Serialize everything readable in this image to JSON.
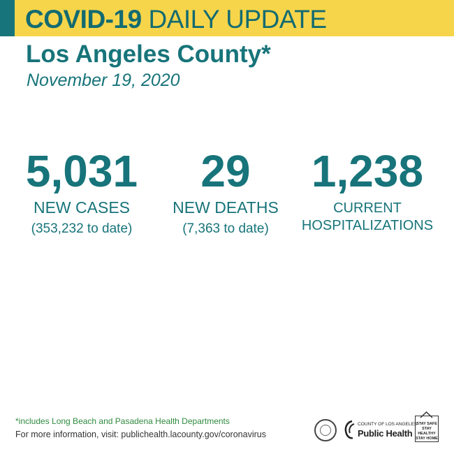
{
  "header": {
    "title_strong": "COVID-19",
    "title_light": "DAILY UPDATE",
    "accent_color": "#17747a",
    "bar_color": "#f7d54a"
  },
  "region": {
    "name": "Los Angeles County*",
    "date": "November 19, 2020"
  },
  "stats": {
    "cases": {
      "value": "5,031",
      "label": "NEW CASES",
      "sub": "(353,232 to date)"
    },
    "deaths": {
      "value": "29",
      "label": "NEW DEATHS",
      "sub": "(7,363 to date)"
    },
    "hospitalizations": {
      "value": "1,238",
      "label_line1": "CURRENT",
      "label_line2": "HOSPITALIZATIONS"
    }
  },
  "footer": {
    "footnote": "*includes Long Beach and Pasadena Health Departments",
    "more_info": "For more information, visit: publichealth.lacounty.gov/coronavirus",
    "logo_county": "COUNTY OF LOS ANGELES",
    "logo_name": "Public Health",
    "badge_lines": [
      "STAY SAFE",
      "STAY HEALTHY",
      "STAY HOME"
    ]
  }
}
